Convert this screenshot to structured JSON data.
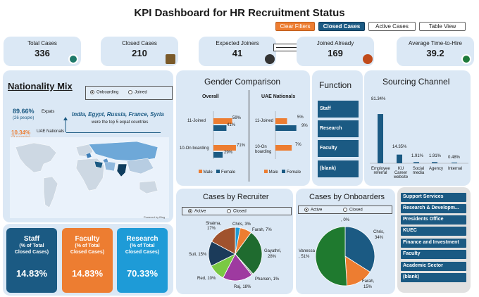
{
  "header": {
    "title": "KPI Dashboard for HR Recruitment Status"
  },
  "toolbar": {
    "clear_filters": "Clear Filters",
    "closed_cases": "Closed Cases",
    "active_cases": "Active Cases",
    "table_view": "Table View"
  },
  "kpis": [
    {
      "label": "Total Cases",
      "value": "336"
    },
    {
      "label": "Closed Cases",
      "value": "210"
    },
    {
      "label": "Expected Joiners",
      "value": "41"
    },
    {
      "label": "Joined Already",
      "value": "169"
    },
    {
      "label": "Average Time-to-Hire",
      "value": "39.2"
    }
  ],
  "nationality": {
    "title": "Nationality Mix",
    "opt_onboarding": "Onboarding",
    "opt_joined": "Joined",
    "expats_pct": "89.66%",
    "expats_people": "(26 people)",
    "expats_label": "Expats",
    "uae_pct": "10.34%",
    "uae_people": "(3 people)",
    "uae_label": "UAE Nationals",
    "countries": "India, Egypt, Russia, France, Syria",
    "countries_sub": "were the top 5 expat countries",
    "map_credit": "Powered by Bing"
  },
  "gender": {
    "title": "Gender Comparison",
    "overall": "Overall",
    "uae": "UAE Nationals",
    "row1": "11-Joined",
    "row2": "10-On boarding",
    "row2_uae_a": "10-On",
    "row2_uae_b": "boarding",
    "legend_male": "Male",
    "legend_female": "Female",
    "overall_labels": [
      "59%",
      "41%",
      "71%",
      "29%"
    ],
    "uae_labels": [
      "5%",
      "9%",
      "7%"
    ]
  },
  "function": {
    "title": "Function",
    "items": [
      "Staff",
      "Research",
      "Faculty",
      "(blank)"
    ]
  },
  "sourcing": {
    "title": "Sourcing Channel",
    "pct_labels": [
      "81.34%",
      "14.35%",
      "1.91%",
      "1.91%",
      "0.48%"
    ],
    "cat1": "Employee",
    "cat1b": "referral",
    "cat2": "KU",
    "cat2b": "Career",
    "cat2c": "website",
    "cat3": "Social",
    "cat3b": "media",
    "cat4": "Agency",
    "cat5": "Internal"
  },
  "recruiter": {
    "title": "Cases by Recruiter",
    "opt_active": "Active",
    "opt_closed": "Closed",
    "labels": [
      "Chris, 3%",
      "Farah, 7%",
      "Gayathri,",
      "28%",
      "Pharsen, 1%",
      "Raj, 18%",
      "Red, 10%",
      "Suli, 15%",
      "Shaima,",
      "17%"
    ]
  },
  "onboarders": {
    "title": "Cases by Onboarders",
    "opt_active": "Active",
    "opt_closed": "Closed",
    "labels": [
      ", 0%",
      "Chris,",
      "34%",
      "Farah,",
      "15%",
      "Vanessa",
      ", 51%"
    ]
  },
  "slicer": {
    "items": [
      "Support Services",
      "Research & Developm...",
      "Presidents Office",
      "KUEC",
      "Finance and Investment",
      "Faculty",
      "Academic Sector",
      "(blank)"
    ]
  },
  "bottom": [
    {
      "title": "Staff",
      "sub1": "(% of Total",
      "sub2": "Closed Cases)",
      "value": "14.83%"
    },
    {
      "title": "Faculty",
      "sub1": "(% of Total",
      "sub2": "Closed Cases)",
      "value": "14.83%"
    },
    {
      "title": "Research",
      "sub1": "(% of Total",
      "sub2": "Closed Cases)",
      "value": "70.33%"
    }
  ],
  "chart_data": [
    {
      "type": "bar",
      "title": "Sourcing Channel",
      "categories": [
        "Employee referral",
        "KU Career website",
        "Social media",
        "Agency",
        "Internal"
      ],
      "values": [
        81.34,
        14.35,
        1.91,
        1.91,
        0.48
      ]
    },
    {
      "type": "pie",
      "title": "Cases by Recruiter",
      "categories": [
        "Chris",
        "Farah",
        "Gayathri",
        "Pharsen",
        "Raj",
        "Red",
        "Suli",
        "Shaima"
      ],
      "values": [
        3,
        7,
        28,
        1,
        18,
        10,
        15,
        17
      ]
    },
    {
      "type": "pie",
      "title": "Cases by Onboarders",
      "categories": [
        "",
        "Chris",
        "Farah",
        "Vanessa"
      ],
      "values": [
        0,
        34,
        15,
        51
      ]
    },
    {
      "type": "bar",
      "title": "Gender Comparison",
      "series": [
        {
          "name": "Male",
          "overall": [
            59,
            71
          ],
          "uae": [
            5,
            7
          ]
        },
        {
          "name": "Female",
          "overall": [
            41,
            29
          ],
          "uae": [
            9,
            0
          ]
        }
      ],
      "categories": [
        "11-Joined",
        "10-On boarding"
      ]
    }
  ],
  "colors": {
    "navy": "#1b5a83",
    "orange": "#ed7d31",
    "teal": "#1e9bd7",
    "card": "#dbe8f5"
  }
}
